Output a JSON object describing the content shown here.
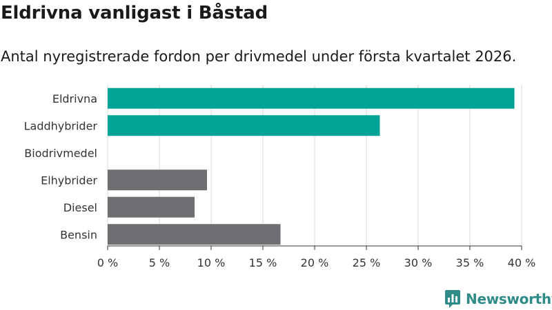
{
  "title": "Eldrivna vanligast i Båstad",
  "subtitle": "Antal nyregistrerade fordon per drivmedel under första kvartalet 2026.",
  "brand": {
    "name": "Newsworthy",
    "color": "#2e8b87"
  },
  "colors": {
    "highlight": "#00a396",
    "default": "#6e6e73",
    "grid": "#d9d9d9",
    "axis": "#333333"
  },
  "chart_data": {
    "type": "bar",
    "orientation": "horizontal",
    "categories": [
      "Eldrivna",
      "Laddhybrider",
      "Biodrivmedel",
      "Elhybrider",
      "Diesel",
      "Bensin"
    ],
    "values": [
      39.3,
      26.3,
      0,
      9.6,
      8.4,
      16.7
    ],
    "highlighted": [
      "Eldrivna",
      "Laddhybrider"
    ],
    "xlim": [
      0,
      40
    ],
    "xticks": [
      0,
      5,
      10,
      15,
      20,
      25,
      30,
      35,
      40
    ],
    "xtick_labels": [
      "0 %",
      "5 %",
      "10 %",
      "15 %",
      "20 %",
      "25 %",
      "30 %",
      "35 %",
      "40 %"
    ],
    "grid": true,
    "xlabel": "",
    "ylabel": ""
  }
}
